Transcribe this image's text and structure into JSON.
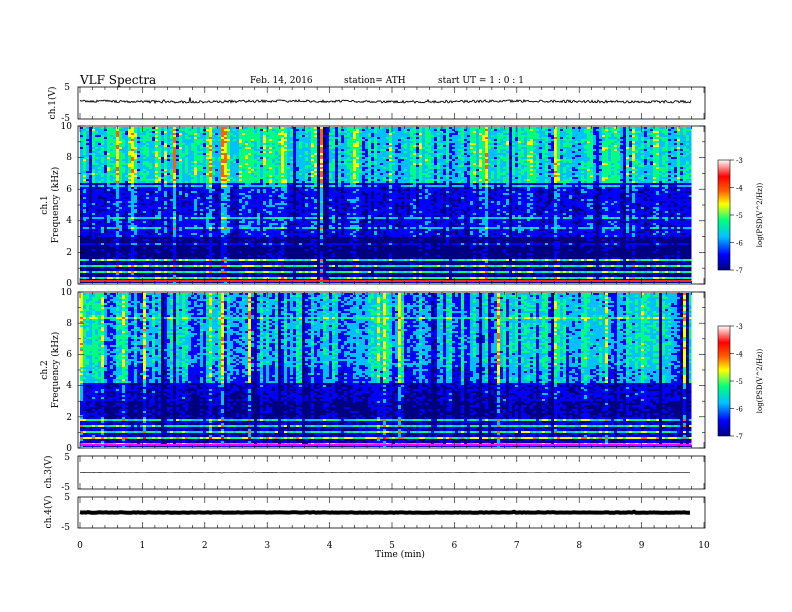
{
  "header": {
    "title": "VLF  Spectra",
    "date": "Feb. 14, 2016",
    "station": "station= ATH",
    "start": "start  UT  =   1  : 0  : 1"
  },
  "colorbar": {
    "label": "log(PSD(V^2/Hz))",
    "ticks": [
      "-3",
      "-4",
      "-5",
      "-6",
      "-7"
    ],
    "stops": [
      "#000080",
      "#0000ff",
      "#00c0ff",
      "#00ff80",
      "#ffff00",
      "#ff6000",
      "#ff0000",
      "#ffffff"
    ]
  },
  "chart_data": [
    {
      "type": "line",
      "ylabel": "ch.1(V)",
      "ylim": [
        -5,
        5
      ],
      "ytick_labels": [
        "5",
        "-5"
      ],
      "xlim": [
        0,
        10
      ],
      "series_mean": 0.5,
      "noise_amplitude": 0.8
    },
    {
      "type": "heatmap",
      "ylabel": "ch.1\nFrequency (kHz)",
      "ylabel_parts": [
        "ch.1",
        "Frequency  (kHz)"
      ],
      "ylim": [
        0,
        10
      ],
      "ytick_labels": [
        "10",
        "8",
        "6",
        "4",
        "2",
        "0"
      ],
      "xlim": [
        0,
        9.8
      ],
      "zlim": [
        -7,
        -3
      ],
      "description_bands_khz": [
        [
          0,
          1.8,
          "striped"
        ],
        [
          1.8,
          3.0,
          "dark"
        ],
        [
          3.0,
          6.5,
          "blue"
        ],
        [
          6.5,
          10,
          "green"
        ]
      ]
    },
    {
      "type": "heatmap",
      "ylabel_parts": [
        "ch.2",
        "Frequency  (kHz)"
      ],
      "ylim": [
        0,
        10
      ],
      "ytick_labels": [
        "10",
        "8",
        "6",
        "4",
        "2",
        "0"
      ],
      "xlim": [
        0,
        9.8
      ],
      "zlim": [
        -7,
        -3
      ]
    },
    {
      "type": "line",
      "ylabel": "ch.3(V)",
      "ylim": [
        -5,
        5
      ],
      "ytick_labels": [
        "5",
        "-5"
      ],
      "xlim": [
        0,
        10
      ],
      "series_mean": 0,
      "noise_amplitude": 0.1
    },
    {
      "type": "line",
      "ylabel": "ch.4(V)",
      "ylim": [
        -5,
        5
      ],
      "ytick_labels": [
        "5",
        "-5"
      ],
      "xlim": [
        0,
        10
      ],
      "series_mean": 0,
      "noise_amplitude": 0.15
    }
  ],
  "xaxis": {
    "label": "Time  (min)",
    "ticks": [
      "0",
      "1",
      "2",
      "3",
      "4",
      "5",
      "6",
      "7",
      "8",
      "9",
      "10"
    ]
  }
}
